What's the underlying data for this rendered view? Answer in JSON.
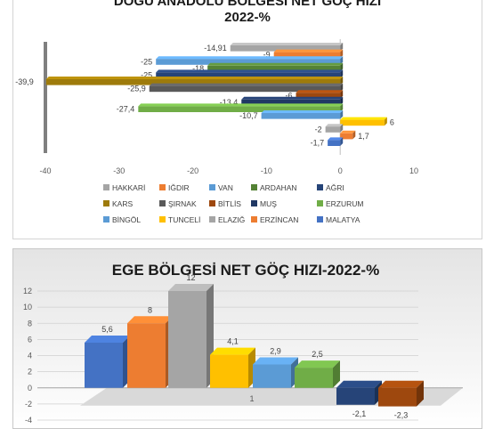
{
  "chart_data": [
    {
      "type": "bar",
      "orientation": "horizontal",
      "title_lines": [
        "DOĞU ANADOLU BÖLGESİ NET GÖÇ HIZI",
        "2022-%"
      ],
      "categories": [
        "HAKKARİ",
        "IĞDIR",
        "VAN",
        "ARDAHAN",
        "AĞRI",
        "KARS",
        "ŞIRNAK",
        "BİTLİS",
        "MUŞ",
        "ERZURUM",
        "BİNGÖL",
        "TUNCELİ",
        "ELAZIĞ",
        "ERZİNCAN",
        "MALATYA"
      ],
      "values": [
        -14.91,
        -9,
        -25,
        -18,
        -25,
        -39.9,
        -25.9,
        -6,
        -13.4,
        -27.4,
        -10.7,
        6,
        -2,
        1.7,
        -1.7
      ],
      "data_labels": [
        "-14,91",
        "-9",
        "-25",
        "-18",
        "-25",
        "-39,9",
        "-25,9",
        "-6",
        "-13,4",
        "-27,4",
        "-10,7",
        "6",
        "-2",
        "1,7",
        "-1,7"
      ],
      "colors": [
        "#a5a5a5",
        "#ed7d31",
        "#5b9bd5",
        "#548235",
        "#264478",
        "#9e7b0b",
        "#595959",
        "#9e480e",
        "#203864",
        "#70ad47",
        "#5b9bd5",
        "#ffc000",
        "#a5a5a5",
        "#ed7d31",
        "#4472c4"
      ],
      "xlim": [
        -40,
        10
      ],
      "xticks": [
        -40,
        -30,
        -20,
        -10,
        0,
        10
      ],
      "legend": "bottom",
      "grid": false
    },
    {
      "type": "bar",
      "orientation": "vertical",
      "style": "3d",
      "title": "EGE BÖLGESİ NET GÖÇ HIZI-2022-%",
      "category_axis_label": "1",
      "values": [
        5.6,
        8,
        12,
        4.1,
        2.9,
        2.5,
        -2.1,
        -2.3
      ],
      "data_labels": [
        "5,6",
        "8",
        "12",
        "4,1",
        "2,9",
        "2,5",
        "-2,1",
        "-2,3"
      ],
      "colors": [
        "#4472c4",
        "#ed7d31",
        "#a5a5a5",
        "#ffc000",
        "#5b9bd5",
        "#70ad47",
        "#264478",
        "#9e480e"
      ],
      "ylim": [
        -4,
        12
      ],
      "yticks": [
        12,
        10,
        8,
        6,
        4,
        2,
        0,
        -2,
        -4
      ],
      "grid": true
    }
  ]
}
